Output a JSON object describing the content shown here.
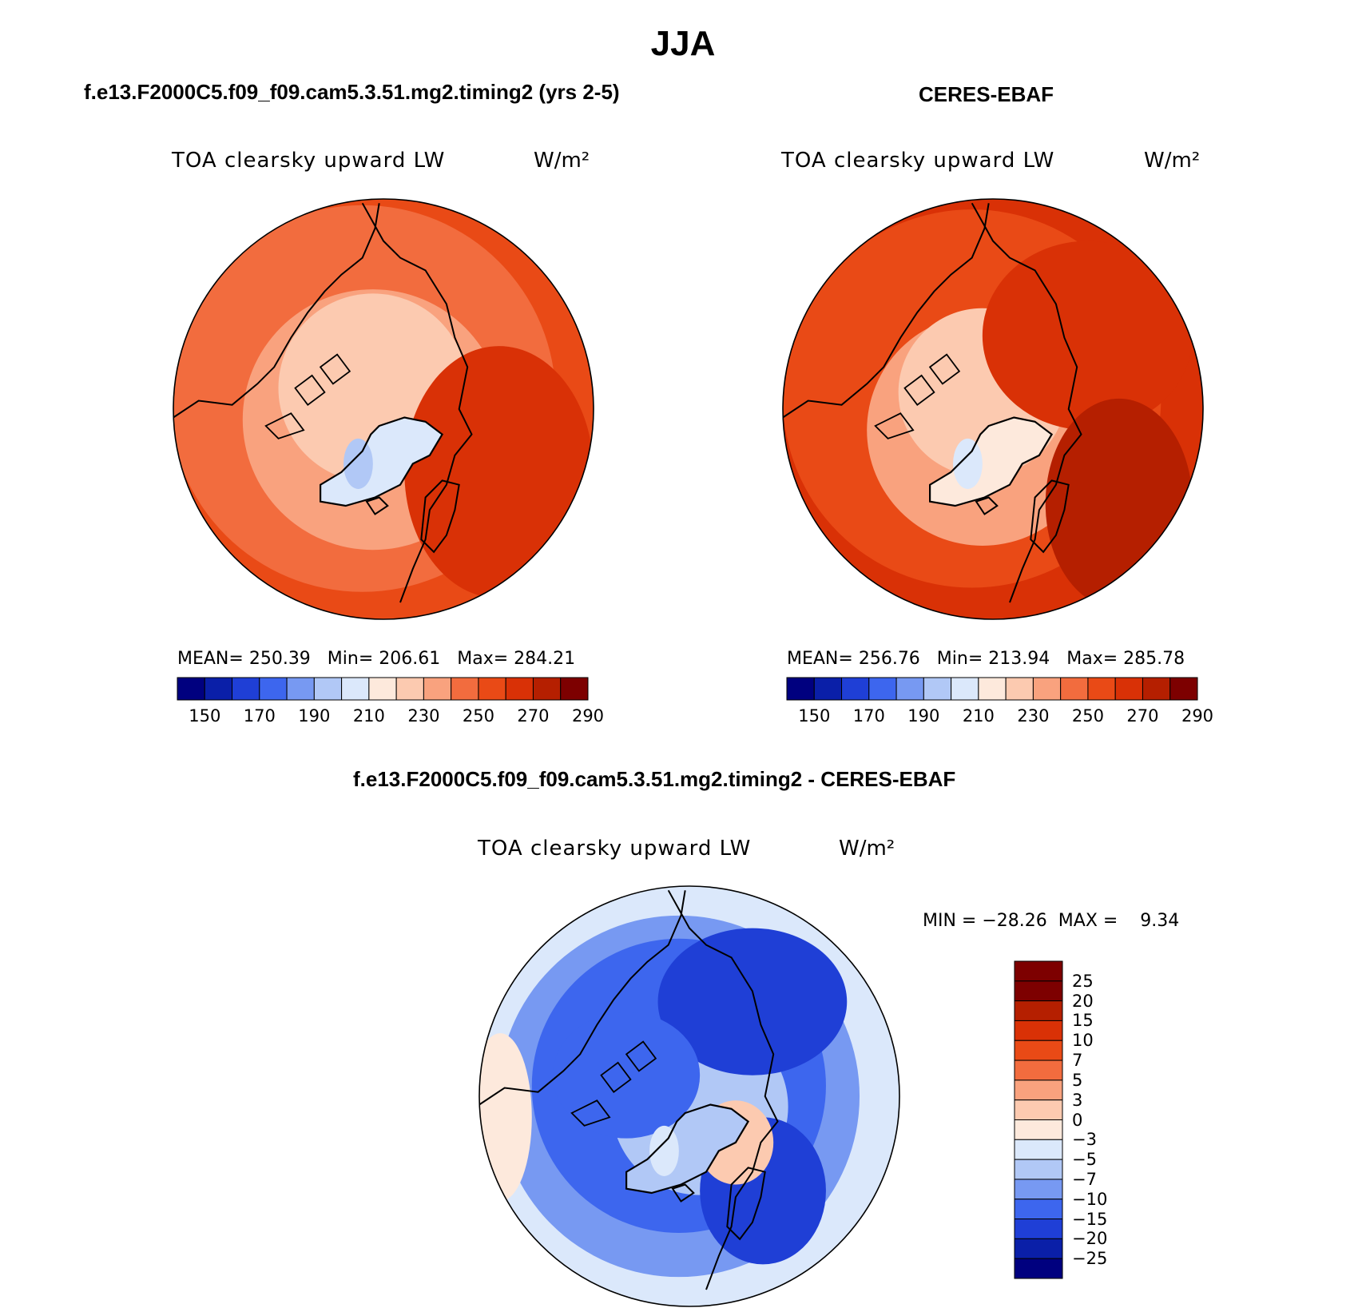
{
  "figure": {
    "title": "JJA",
    "colors": {
      "abs_scale": [
        "#00007f",
        "#0a1fa8",
        "#1f3fd6",
        "#3d66ee",
        "#7799f2",
        "#b1c8f6",
        "#dbe8fb",
        "#fde9dc",
        "#fccab0",
        "#f9a27e",
        "#f26c3e",
        "#e94a16",
        "#d93106",
        "#b51f00",
        "#7d0000"
      ],
      "diff_scale": [
        "#00007f",
        "#0a1fa8",
        "#1f3fd6",
        "#3d66ee",
        "#7799f2",
        "#b1c8f6",
        "#dbe8fb",
        "#fde9dc",
        "#fccab0",
        "#f9a27e",
        "#f26c3e",
        "#e94a16",
        "#d93106",
        "#b51f00",
        "#7d0000"
      ],
      "coast": "#000000"
    }
  },
  "chart_data": [
    {
      "type": "heatmap",
      "projection": "north-polar-stereographic",
      "panel_title": "f.e13.F2000C5.f09_f09.cam5.3.51.mg2.timing2 (yrs 2-5)",
      "variable": "TOA clearsky upward LW",
      "units": "W/m²",
      "stats": {
        "mean_label": "MEAN=",
        "mean": "250.39",
        "min_label": "Min=",
        "min": "206.61",
        "max_label": "Max=",
        "max": "284.21"
      },
      "colorbar_ticks": [
        "150",
        "170",
        "190",
        "210",
        "230",
        "250",
        "270",
        "290"
      ],
      "colorbar_levels": [
        140,
        150,
        160,
        170,
        180,
        190,
        200,
        210,
        220,
        230,
        240,
        250,
        260,
        270,
        280,
        290
      ],
      "field_description": "low values (~205-230) over Greenland ice sheet and central Arctic, rising to 270-285 at mid-latitudes"
    },
    {
      "type": "heatmap",
      "projection": "north-polar-stereographic",
      "panel_title": "CERES-EBAF",
      "variable": "TOA clearsky upward LW",
      "units": "W/m²",
      "stats": {
        "mean_label": "MEAN=",
        "mean": "256.76",
        "min_label": "Min=",
        "min": "213.94",
        "max_label": "Max=",
        "max": "285.78"
      },
      "colorbar_ticks": [
        "150",
        "170",
        "190",
        "210",
        "230",
        "250",
        "270",
        "290"
      ],
      "colorbar_levels": [
        140,
        150,
        160,
        170,
        180,
        190,
        200,
        210,
        220,
        230,
        240,
        250,
        260,
        270,
        280,
        290
      ],
      "field_description": "low values over Greenland and central Arctic, 270-285 at mid-latitudes"
    },
    {
      "type": "heatmap",
      "projection": "north-polar-stereographic",
      "panel_title": "f.e13.F2000C5.f09_f09.cam5.3.51.mg2.timing2 - CERES-EBAF",
      "variable": "TOA clearsky upward LW",
      "units": "W/m²",
      "stats": {
        "min_label": "MIN =",
        "min": "−28.26",
        "max_label": "MAX =",
        "max": "9.34"
      },
      "colorbar_ticks": [
        "25",
        "20",
        "15",
        "10",
        "7",
        "5",
        "3",
        "0",
        "−3",
        "−5",
        "−7",
        "−10",
        "−15",
        "−20",
        "−25"
      ],
      "colorbar_levels": [
        -25,
        -20,
        -15,
        -10,
        -7,
        -5,
        -3,
        0,
        3,
        5,
        7,
        10,
        15,
        20,
        25
      ],
      "field_description": "model minus observations mostly negative (-3 to -15) with small positive areas over central Arctic"
    }
  ]
}
